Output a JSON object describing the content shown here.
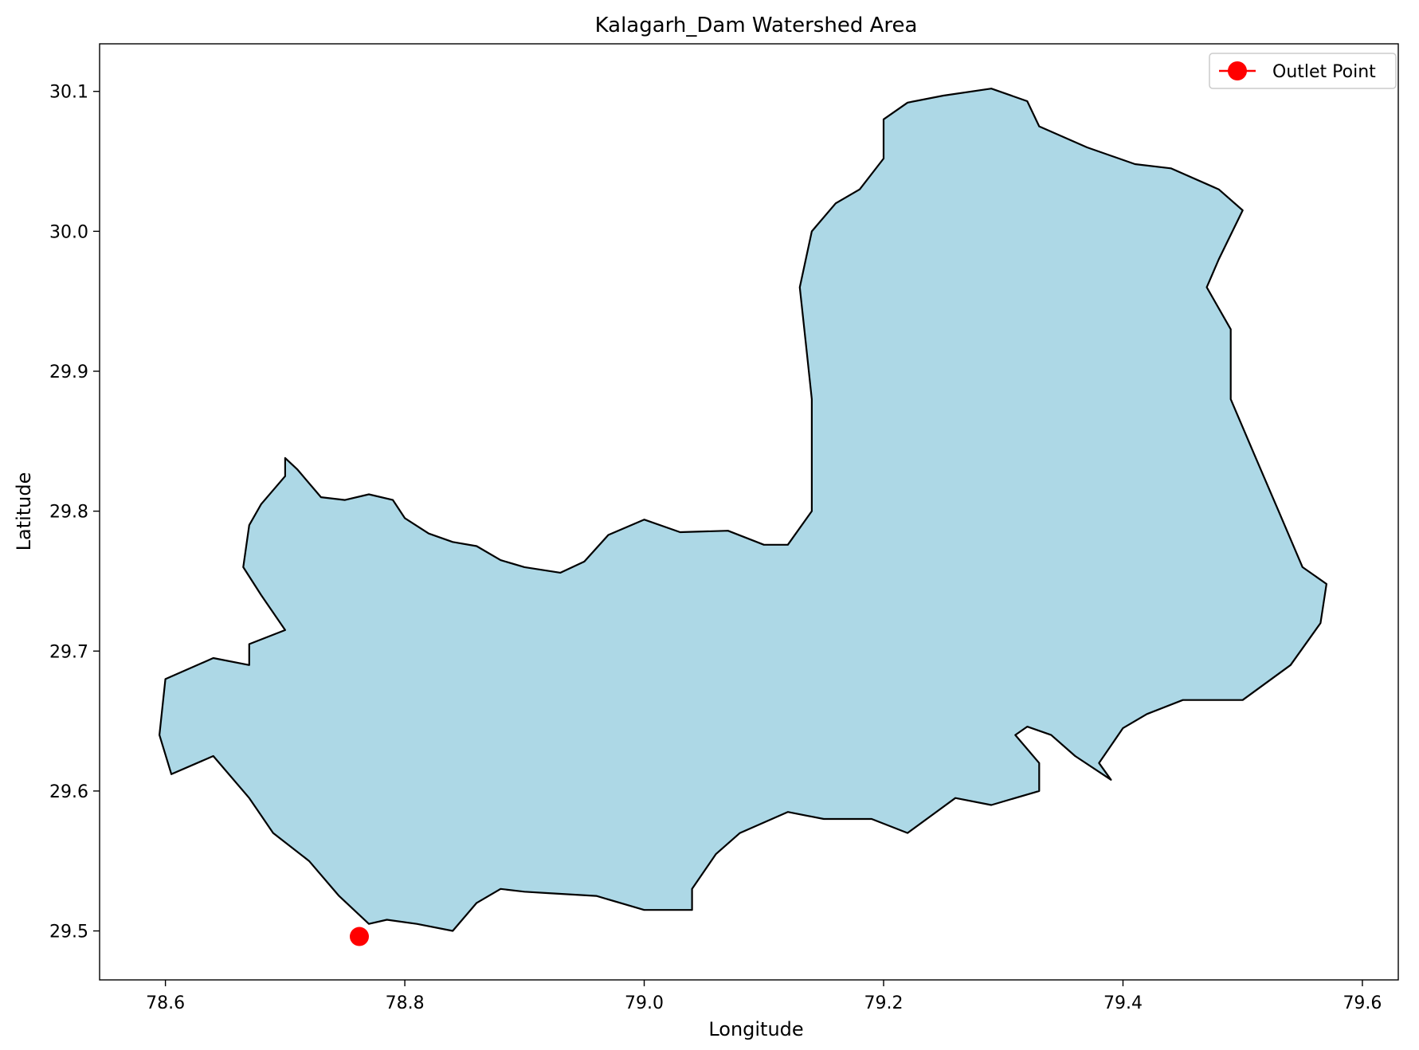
{
  "chart_data": {
    "type": "map",
    "title": "Kalagarh_Dam Watershed Area",
    "xlabel": "Longitude",
    "ylabel": "Latitude",
    "xlim": [
      78.545,
      79.63
    ],
    "ylim": [
      29.465,
      30.134
    ],
    "xticks": [
      78.6,
      78.8,
      79.0,
      79.2,
      79.4,
      79.6
    ],
    "xtick_labels": [
      "78.6",
      "78.8",
      "79.0",
      "79.2",
      "79.4",
      "79.6"
    ],
    "yticks": [
      29.5,
      29.6,
      29.7,
      29.8,
      29.9,
      30.0,
      30.1
    ],
    "ytick_labels": [
      "29.5",
      "29.6",
      "29.7",
      "29.8",
      "29.9",
      "30.0",
      "30.1"
    ],
    "grid": false,
    "legend_position": "upper-right",
    "legend": [
      {
        "label": "Outlet Point",
        "color": "#ff0000",
        "marker": "circle"
      }
    ],
    "fill_color": "#add8e6",
    "edge_color": "#000000",
    "outlet_point": {
      "name": "Outlet Point",
      "lon": 78.762,
      "lat": 29.496,
      "color": "#ff0000"
    },
    "watershed_boundary": [
      [
        78.7,
        29.838
      ],
      [
        78.71,
        29.83
      ],
      [
        78.73,
        29.81
      ],
      [
        78.75,
        29.808
      ],
      [
        78.77,
        29.812
      ],
      [
        78.79,
        29.808
      ],
      [
        78.8,
        29.795
      ],
      [
        78.82,
        29.784
      ],
      [
        78.84,
        29.778
      ],
      [
        78.86,
        29.775
      ],
      [
        78.88,
        29.765
      ],
      [
        78.9,
        29.76
      ],
      [
        78.93,
        29.756
      ],
      [
        78.95,
        29.764
      ],
      [
        78.97,
        29.783
      ],
      [
        79.0,
        29.794
      ],
      [
        79.03,
        29.785
      ],
      [
        79.07,
        29.786
      ],
      [
        79.1,
        29.776
      ],
      [
        79.12,
        29.776
      ],
      [
        79.14,
        29.8
      ],
      [
        79.14,
        29.845
      ],
      [
        79.14,
        29.88
      ],
      [
        79.135,
        29.92
      ],
      [
        79.13,
        29.96
      ],
      [
        79.14,
        30.0
      ],
      [
        79.16,
        30.02
      ],
      [
        79.18,
        30.03
      ],
      [
        79.2,
        30.052
      ],
      [
        79.2,
        30.08
      ],
      [
        79.22,
        30.092
      ],
      [
        79.25,
        30.097
      ],
      [
        79.29,
        30.102
      ],
      [
        79.32,
        30.093
      ],
      [
        79.33,
        30.075
      ],
      [
        79.37,
        30.06
      ],
      [
        79.41,
        30.048
      ],
      [
        79.44,
        30.045
      ],
      [
        79.48,
        30.03
      ],
      [
        79.5,
        30.015
      ],
      [
        79.48,
        29.98
      ],
      [
        79.47,
        29.96
      ],
      [
        79.49,
        29.93
      ],
      [
        79.49,
        29.88
      ],
      [
        79.51,
        29.84
      ],
      [
        79.53,
        29.8
      ],
      [
        79.55,
        29.76
      ],
      [
        79.57,
        29.748
      ],
      [
        79.565,
        29.72
      ],
      [
        79.54,
        29.69
      ],
      [
        79.5,
        29.665
      ],
      [
        79.45,
        29.665
      ],
      [
        79.42,
        29.655
      ],
      [
        79.4,
        29.645
      ],
      [
        79.38,
        29.62
      ],
      [
        79.39,
        29.608
      ],
      [
        79.36,
        29.625
      ],
      [
        79.34,
        29.64
      ],
      [
        79.32,
        29.646
      ],
      [
        79.31,
        29.64
      ],
      [
        79.33,
        29.62
      ],
      [
        79.33,
        29.6
      ],
      [
        79.29,
        29.59
      ],
      [
        79.26,
        29.595
      ],
      [
        79.22,
        29.57
      ],
      [
        79.19,
        29.58
      ],
      [
        79.15,
        29.58
      ],
      [
        79.12,
        29.585
      ],
      [
        79.08,
        29.57
      ],
      [
        79.06,
        29.555
      ],
      [
        79.04,
        29.53
      ],
      [
        79.04,
        29.515
      ],
      [
        79.0,
        29.515
      ],
      [
        78.96,
        29.525
      ],
      [
        78.92,
        29.527
      ],
      [
        78.9,
        29.528
      ],
      [
        78.88,
        29.53
      ],
      [
        78.86,
        29.52
      ],
      [
        78.84,
        29.5
      ],
      [
        78.81,
        29.505
      ],
      [
        78.785,
        29.508
      ],
      [
        78.77,
        29.505
      ],
      [
        78.745,
        29.525
      ],
      [
        78.72,
        29.55
      ],
      [
        78.69,
        29.57
      ],
      [
        78.67,
        29.595
      ],
      [
        78.64,
        29.625
      ],
      [
        78.605,
        29.612
      ],
      [
        78.595,
        29.64
      ],
      [
        78.6,
        29.68
      ],
      [
        78.64,
        29.695
      ],
      [
        78.67,
        29.69
      ],
      [
        78.67,
        29.705
      ],
      [
        78.7,
        29.715
      ],
      [
        78.68,
        29.74
      ],
      [
        78.665,
        29.76
      ],
      [
        78.67,
        29.79
      ],
      [
        78.68,
        29.805
      ],
      [
        78.7,
        29.825
      ]
    ]
  }
}
